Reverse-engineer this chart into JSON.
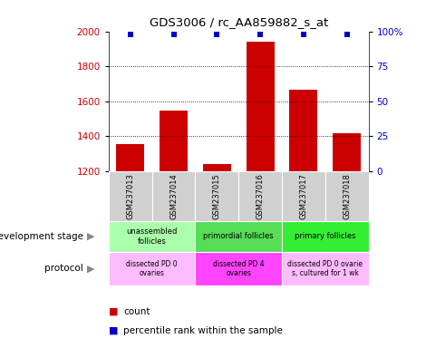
{
  "title": "GDS3006 / rc_AA859882_s_at",
  "samples": [
    "GSM237013",
    "GSM237014",
    "GSM237015",
    "GSM237016",
    "GSM237017",
    "GSM237018"
  ],
  "counts": [
    1355,
    1548,
    1238,
    1943,
    1665,
    1418
  ],
  "percentile_ranks": [
    98,
    98,
    98,
    98,
    98,
    98
  ],
  "ylim": [
    1200,
    2000
  ],
  "yticks": [
    1200,
    1400,
    1600,
    1800,
    2000
  ],
  "right_yticks": [
    0,
    25,
    50,
    75,
    100
  ],
  "right_ylim": [
    0,
    100
  ],
  "bar_color": "#cc0000",
  "dot_color": "#0000cc",
  "dev_stage_groups": [
    {
      "label": "unassembled\nfollicles",
      "cols": [
        0,
        1
      ],
      "color": "#aaffaa"
    },
    {
      "label": "primordial follicles",
      "cols": [
        2,
        3
      ],
      "color": "#55dd55"
    },
    {
      "label": "primary follicles",
      "cols": [
        4,
        5
      ],
      "color": "#33ee33"
    }
  ],
  "protocol_groups": [
    {
      "label": "dissected PD 0\novaries",
      "cols": [
        0,
        1
      ],
      "color": "#ffbbff"
    },
    {
      "label": "dissected PD 4\novaries",
      "cols": [
        2,
        3
      ],
      "color": "#ff44ff"
    },
    {
      "label": "dissected PD 0 ovarie\ns, cultured for 1 wk",
      "cols": [
        4,
        5
      ],
      "color": "#ffbbff"
    }
  ],
  "left_label_dev": "development stage",
  "left_label_prot": "protocol",
  "legend_count_label": "count",
  "legend_pct_label": "percentile rank within the sample",
  "bg_color": "#ffffff",
  "sample_box_color": "#d0d0d0",
  "arrow_color": "#888888"
}
